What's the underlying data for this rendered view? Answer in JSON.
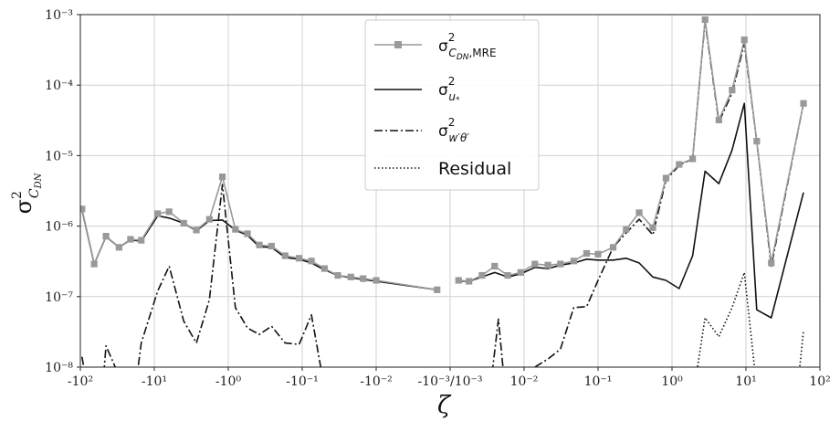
{
  "chart_data": {
    "type": "line",
    "xlabel": "ζ",
    "ylabel": "σ²_{C_DN}",
    "yscale": "log",
    "ylim": [
      1e-08,
      0.001
    ],
    "yticks": [
      "10⁻⁸",
      "10⁻⁷",
      "10⁻⁶",
      "10⁻⁵",
      "10⁻⁴",
      "10⁻³"
    ],
    "xscale": "symlog",
    "xlim": [
      -100,
      100
    ],
    "xtick_labels": [
      {
        "value": -100,
        "label": "-10²"
      },
      {
        "value": -10,
        "label": "-10¹"
      },
      {
        "value": -1,
        "label": "-10⁰"
      },
      {
        "value": -0.1,
        "label": "-10⁻¹"
      },
      {
        "value": -0.01,
        "label": "-10⁻²"
      },
      {
        "value": 0,
        "label": "-10⁻³/10⁻³"
      },
      {
        "value": 0.01,
        "label": "10⁻²"
      },
      {
        "value": 0.1,
        "label": "10⁻¹"
      },
      {
        "value": 1,
        "label": "10⁰"
      },
      {
        "value": 10,
        "label": "10¹"
      },
      {
        "value": 100,
        "label": "10²"
      }
    ],
    "grid": true,
    "legend_position": "top-center",
    "series": [
      {
        "name": "σ²_{C_DN,MRE}",
        "color": "#999999",
        "style": "solid-square-markers",
        "points": [
          [
            -95,
            1.75e-06
          ],
          [
            -65,
            2.9e-07
          ],
          [
            -45,
            7.2e-07
          ],
          [
            -30,
            5e-07
          ],
          [
            -21,
            6.5e-07
          ],
          [
            -15,
            6.3e-07
          ],
          [
            -9,
            1.5e-06
          ],
          [
            -6.3,
            1.6e-06
          ],
          [
            -4,
            1.1e-06
          ],
          [
            -2.7,
            8.8e-07
          ],
          [
            -1.8,
            1.25e-06
          ],
          [
            -1.2,
            5e-06
          ],
          [
            -0.8,
            9e-07
          ],
          [
            -0.55,
            7.8e-07
          ],
          [
            -0.38,
            5.4e-07
          ],
          [
            -0.26,
            5.2e-07
          ],
          [
            -0.17,
            3.8e-07
          ],
          [
            -0.11,
            3.5e-07
          ],
          [
            -0.075,
            3.2e-07
          ],
          [
            -0.05,
            2.5e-07
          ],
          [
            -0.033,
            2e-07
          ],
          [
            -0.022,
            1.9e-07
          ],
          [
            -0.015,
            1.8e-07
          ],
          [
            -0.01,
            1.7e-07
          ],
          [
            -0.0015,
            1.25e-07
          ],
          [
            0.0013,
            1.7e-07
          ],
          [
            0.0018,
            1.65e-07
          ],
          [
            0.0027,
            2e-07
          ],
          [
            0.004,
            2.7e-07
          ],
          [
            0.006,
            2e-07
          ],
          [
            0.009,
            2.2e-07
          ],
          [
            0.014,
            2.9e-07
          ],
          [
            0.021,
            2.8e-07
          ],
          [
            0.031,
            2.9e-07
          ],
          [
            0.047,
            3.2e-07
          ],
          [
            0.07,
            4.1e-07
          ],
          [
            0.1,
            4e-07
          ],
          [
            0.16,
            5e-07
          ],
          [
            0.24,
            9e-07
          ],
          [
            0.36,
            1.55e-06
          ],
          [
            0.55,
            9.5e-07
          ],
          [
            0.83,
            4.8e-06
          ],
          [
            1.25,
            7.5e-06
          ],
          [
            1.9,
            9e-06
          ],
          [
            2.8,
            0.00085
          ],
          [
            4.3,
            3.2e-05
          ],
          [
            6.5,
            8.5e-05
          ],
          [
            9.5,
            0.00044
          ],
          [
            14,
            1.6e-05
          ],
          [
            22,
            3e-07
          ],
          [
            60,
            5.5e-05
          ]
        ]
      },
      {
        "name": "σ²_{u*}",
        "color": "#111111",
        "style": "solid",
        "points": [
          [
            -95,
            1.7e-06
          ],
          [
            -65,
            2.9e-07
          ],
          [
            -45,
            7.1e-07
          ],
          [
            -30,
            5e-07
          ],
          [
            -21,
            6.4e-07
          ],
          [
            -15,
            6.1e-07
          ],
          [
            -9,
            1.4e-06
          ],
          [
            -6.3,
            1.3e-06
          ],
          [
            -4,
            1.1e-06
          ],
          [
            -2.7,
            8.6e-07
          ],
          [
            -1.8,
            1.2e-06
          ],
          [
            -1.2,
            1.22e-06
          ],
          [
            -0.8,
            8.8e-07
          ],
          [
            -0.55,
            7.4e-07
          ],
          [
            -0.38,
            5.1e-07
          ],
          [
            -0.26,
            5e-07
          ],
          [
            -0.17,
            3.6e-07
          ],
          [
            -0.11,
            3.4e-07
          ],
          [
            -0.075,
            3e-07
          ],
          [
            -0.05,
            2.4e-07
          ],
          [
            -0.033,
            2e-07
          ],
          [
            -0.022,
            1.85e-07
          ],
          [
            -0.015,
            1.75e-07
          ],
          [
            -0.01,
            1.65e-07
          ],
          [
            -0.0015,
            1.25e-07
          ],
          [
            0.0013,
            1.65e-07
          ],
          [
            0.0018,
            1.65e-07
          ],
          [
            0.0027,
            1.9e-07
          ],
          [
            0.004,
            2.2e-07
          ],
          [
            0.006,
            1.9e-07
          ],
          [
            0.009,
            2.1e-07
          ],
          [
            0.014,
            2.6e-07
          ],
          [
            0.021,
            2.5e-07
          ],
          [
            0.031,
            2.8e-07
          ],
          [
            0.047,
            3e-07
          ],
          [
            0.07,
            3.4e-07
          ],
          [
            0.1,
            3.3e-07
          ],
          [
            0.16,
            3.3e-07
          ],
          [
            0.24,
            3.5e-07
          ],
          [
            0.36,
            3e-07
          ],
          [
            0.55,
            1.9e-07
          ],
          [
            0.83,
            1.7e-07
          ],
          [
            1.25,
            1.3e-07
          ],
          [
            1.9,
            3.8e-07
          ],
          [
            2.8,
            6e-06
          ],
          [
            4.3,
            4e-06
          ],
          [
            6.5,
            1.2e-05
          ],
          [
            9.5,
            5.5e-05
          ],
          [
            14,
            6.5e-08
          ],
          [
            22,
            5e-08
          ],
          [
            60,
            3e-06
          ]
        ]
      },
      {
        "name": "σ²_{w'θ'}",
        "color": "#111111",
        "style": "dash-dot",
        "points": [
          [
            -95,
            1.4e-08
          ],
          [
            -80,
            5e-09
          ],
          [
            -50,
            5e-09
          ],
          [
            -45,
            2e-08
          ],
          [
            -35,
            1.1e-08
          ],
          [
            -26,
            5e-09
          ],
          [
            -18,
            5e-09
          ],
          [
            -15,
            2.2e-08
          ],
          [
            -9,
            1.2e-07
          ],
          [
            -6.3,
            2.7e-07
          ],
          [
            -4,
            4.5e-08
          ],
          [
            -2.7,
            2.2e-08
          ],
          [
            -1.8,
            9e-08
          ],
          [
            -1.2,
            3.9e-06
          ],
          [
            -0.8,
            7e-08
          ],
          [
            -0.55,
            3.6e-08
          ],
          [
            -0.38,
            2.9e-08
          ],
          [
            -0.26,
            3.8e-08
          ],
          [
            -0.17,
            2.2e-08
          ],
          [
            -0.11,
            2.1e-08
          ],
          [
            -0.075,
            5.5e-08
          ],
          [
            -0.05,
            5e-09
          ],
          [
            0.0035,
            5e-09
          ],
          [
            0.0045,
            4.8e-08
          ],
          [
            0.0055,
            5e-09
          ],
          [
            0.012,
            5e-09
          ],
          [
            0.014,
            1e-08
          ],
          [
            0.021,
            1.3e-08
          ],
          [
            0.031,
            1.8e-08
          ],
          [
            0.047,
            7e-08
          ],
          [
            0.07,
            7.2e-08
          ],
          [
            0.1,
            1.7e-07
          ],
          [
            0.16,
            5e-07
          ],
          [
            0.24,
            8e-07
          ],
          [
            0.36,
            1.25e-06
          ],
          [
            0.55,
            7.5e-07
          ],
          [
            0.83,
            4.5e-06
          ],
          [
            1.25,
            7.3e-06
          ],
          [
            1.9,
            9e-06
          ],
          [
            2.8,
            0.0008
          ],
          [
            4.3,
            3e-05
          ],
          [
            6.5,
            7.7e-05
          ],
          [
            9.5,
            0.00039
          ],
          [
            14,
            1.6e-05
          ],
          [
            22,
            2.7e-07
          ],
          [
            60,
            5.5e-05
          ]
        ]
      },
      {
        "name": "Residual",
        "color": "#111111",
        "style": "dotted",
        "points": [
          [
            2.0,
            5e-09
          ],
          [
            2.8,
            5e-08
          ],
          [
            4.3,
            2.7e-08
          ],
          [
            6.5,
            7e-08
          ],
          [
            9.5,
            2.2e-07
          ],
          [
            14,
            5e-09
          ],
          [
            50,
            5e-09
          ],
          [
            60,
            3.3e-08
          ]
        ]
      }
    ]
  }
}
